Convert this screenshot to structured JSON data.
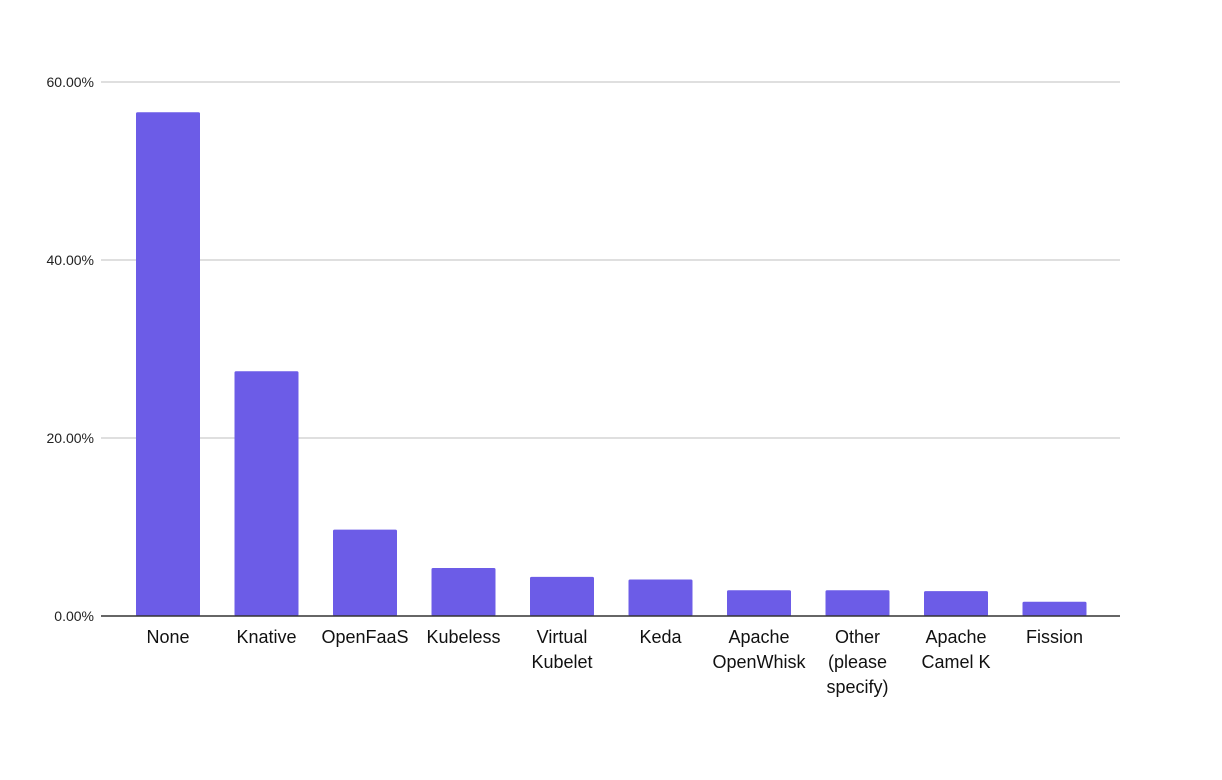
{
  "colors": {
    "bar": "#6C5CE7",
    "grid": "#cccccc",
    "axis": "#333333",
    "background": "#ffffff"
  },
  "chart_data": {
    "type": "bar",
    "title": "",
    "xlabel": "",
    "ylabel": "",
    "ylim": [
      0,
      60
    ],
    "y_ticks": [
      0,
      20,
      40,
      60
    ],
    "y_tick_labels": [
      "0.00%",
      "20.00%",
      "40.00%",
      "60.00%"
    ],
    "grid": true,
    "legend": "none",
    "categories": [
      "None",
      "Knative",
      "OpenFaaS",
      "Kubeless",
      "Virtual Kubelet",
      "Keda",
      "Apache OpenWhisk",
      "Other (please specify)",
      "Apache Camel K",
      "Fission"
    ],
    "category_label_lines": [
      [
        "None"
      ],
      [
        "Knative"
      ],
      [
        "OpenFaaS"
      ],
      [
        "Kubeless"
      ],
      [
        "Virtual",
        "Kubelet"
      ],
      [
        "Keda"
      ],
      [
        "Apache",
        "OpenWhisk"
      ],
      [
        "Other",
        "(please",
        "specify)"
      ],
      [
        "Apache",
        "Camel K"
      ],
      [
        "Fission"
      ]
    ],
    "values": [
      56.6,
      27.5,
      9.7,
      5.4,
      4.4,
      4.1,
      2.9,
      2.9,
      2.8,
      1.6
    ]
  }
}
